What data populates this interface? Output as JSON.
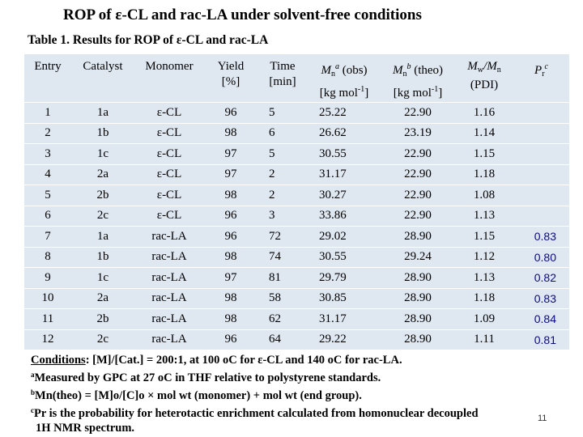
{
  "title": "ROP of ε-CL and rac-LA  under solvent-free conditions",
  "table_caption": "Table 1. Results for ROP of ε-CL and rac-LA",
  "headers": {
    "entry": "Entry",
    "catalyst": "Catalyst",
    "monomer": "Monomer",
    "yield_1": "Yield",
    "yield_2": "[%]",
    "time_1": "Time",
    "time_2": "[min]",
    "mn_obs_m": "M",
    "mn_obs_n": "n",
    "mn_obs_a": "a",
    "mn_obs_1": "(obs)",
    "mn_obs_2": "[kg mol",
    "mn_obs_exp": "-1",
    "mn_obs_3": "]",
    "mn_theo_m": "M",
    "mn_theo_n": "n",
    "mn_theo_b": "b",
    "mn_theo_1": "(theo)",
    "mn_theo_2": "[kg mol",
    "mn_theo_exp": "-1",
    "mn_theo_3": "]",
    "pdi_mw": "M",
    "pdi_w": "w",
    "pdi_slash": "/M",
    "pdi_n": "n",
    "pdi_2": "(PDI)",
    "pr_p": "P",
    "pr_r": "r",
    "pr_c": "c"
  },
  "rows": [
    {
      "entry": "1",
      "catalyst": "1a",
      "monomer": "ε-CL",
      "yield": "96",
      "time": "5",
      "mn_obs": "25.22",
      "mn_theo": "22.90",
      "pdi": "1.16",
      "pr": ""
    },
    {
      "entry": "2",
      "catalyst": "1b",
      "monomer": "ε-CL",
      "yield": "98",
      "time": "6",
      "mn_obs": "26.62",
      "mn_theo": "23.19",
      "pdi": "1.14",
      "pr": ""
    },
    {
      "entry": "3",
      "catalyst": "1c",
      "monomer": "ε-CL",
      "yield": "97",
      "time": "5",
      "mn_obs": "30.55",
      "mn_theo": "22.90",
      "pdi": "1.15",
      "pr": ""
    },
    {
      "entry": "4",
      "catalyst": "2a",
      "monomer": "ε-CL",
      "yield": "97",
      "time": "2",
      "mn_obs": "31.17",
      "mn_theo": "22.90",
      "pdi": "1.18",
      "pr": ""
    },
    {
      "entry": "5",
      "catalyst": "2b",
      "monomer": "ε-CL",
      "yield": "98",
      "time": "2",
      "mn_obs": "30.27",
      "mn_theo": "22.90",
      "pdi": "1.08",
      "pr": ""
    },
    {
      "entry": "6",
      "catalyst": "2c",
      "monomer": "ε-CL",
      "yield": "96",
      "time": "3",
      "mn_obs": "33.86",
      "mn_theo": "22.90",
      "pdi": "1.13",
      "pr": ""
    },
    {
      "entry": "7",
      "catalyst": "1a",
      "monomer": "rac-LA",
      "yield": "96",
      "time": "72",
      "mn_obs": "29.02",
      "mn_theo": "28.90",
      "pdi": "1.15",
      "pr": "0.83"
    },
    {
      "entry": "8",
      "catalyst": "1b",
      "monomer": "rac-LA",
      "yield": "98",
      "time": "74",
      "mn_obs": "30.55",
      "mn_theo": "29.24",
      "pdi": "1.12",
      "pr": "0.80"
    },
    {
      "entry": "9",
      "catalyst": "1c",
      "monomer": "rac-LA",
      "yield": "97",
      "time": "81",
      "mn_obs": "29.79",
      "mn_theo": "28.90",
      "pdi": "1.13",
      "pr": "0.82"
    },
    {
      "entry": "10",
      "catalyst": "2a",
      "monomer": "rac-LA",
      "yield": "98",
      "time": "58",
      "mn_obs": "30.85",
      "mn_theo": "28.90",
      "pdi": "1.18",
      "pr": "0.83"
    },
    {
      "entry": "11",
      "catalyst": "2b",
      "monomer": "rac-LA",
      "yield": "98",
      "time": "62",
      "mn_obs": "31.17",
      "mn_theo": "28.90",
      "pdi": "1.09",
      "pr": "0.84"
    },
    {
      "entry": "12",
      "catalyst": "2c",
      "monomer": "rac-LA",
      "yield": "96",
      "time": "64",
      "mn_obs": "29.22",
      "mn_theo": "28.90",
      "pdi": "1.11",
      "pr": "0.81"
    }
  ],
  "footnotes": {
    "conditions_label": "Conditions",
    "conditions_text": ": [M]/[Cat.] = 200:1, at 100 oC  for ε-CL and 140 oC for rac-LA.",
    "a_mark": "a",
    "a_text": "Measured by GPC at 27 oC in THF relative to polystyrene standards.",
    "b_mark": "b",
    "b_text": "Mn(theo) = [M]o/[C]o × mol wt (monomer) + mol wt (end group).",
    "c_mark": "c",
    "c_text": "Pr is the probability for heterotactic enrichment calculated from homonuclear decoupled",
    "c_text_2": "1H NMR spectrum."
  },
  "page_number": "11",
  "colors": {
    "table_bg": "#dfe7f0",
    "pr_text": "#0a0a8a"
  }
}
